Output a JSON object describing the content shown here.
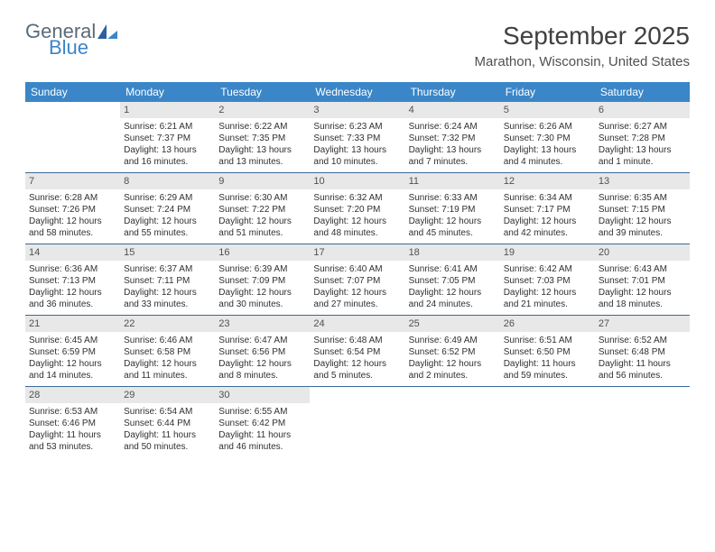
{
  "brand": {
    "part1": "General",
    "part2": "Blue"
  },
  "title": "September 2025",
  "location": "Marathon, Wisconsin, United States",
  "colors": {
    "header_bg": "#3a86c8",
    "header_text": "#ffffff",
    "daynum_bg": "#e8e8e8",
    "daynum_text": "#505050",
    "body_text": "#303030",
    "rule": "#3a6a9a",
    "page_bg": "#ffffff",
    "logo_gray": "#5a6b78",
    "logo_blue": "#3a86c8"
  },
  "typography": {
    "title_fontsize": 28,
    "location_fontsize": 15,
    "header_fontsize": 12,
    "daynum_fontsize": 11,
    "cell_fontsize": 10
  },
  "day_labels": [
    "Sunday",
    "Monday",
    "Tuesday",
    "Wednesday",
    "Thursday",
    "Friday",
    "Saturday"
  ],
  "weeks": [
    [
      null,
      {
        "n": "1",
        "sr": "Sunrise: 6:21 AM",
        "ss": "Sunset: 7:37 PM",
        "d1": "Daylight: 13 hours",
        "d2": "and 16 minutes."
      },
      {
        "n": "2",
        "sr": "Sunrise: 6:22 AM",
        "ss": "Sunset: 7:35 PM",
        "d1": "Daylight: 13 hours",
        "d2": "and 13 minutes."
      },
      {
        "n": "3",
        "sr": "Sunrise: 6:23 AM",
        "ss": "Sunset: 7:33 PM",
        "d1": "Daylight: 13 hours",
        "d2": "and 10 minutes."
      },
      {
        "n": "4",
        "sr": "Sunrise: 6:24 AM",
        "ss": "Sunset: 7:32 PM",
        "d1": "Daylight: 13 hours",
        "d2": "and 7 minutes."
      },
      {
        "n": "5",
        "sr": "Sunrise: 6:26 AM",
        "ss": "Sunset: 7:30 PM",
        "d1": "Daylight: 13 hours",
        "d2": "and 4 minutes."
      },
      {
        "n": "6",
        "sr": "Sunrise: 6:27 AM",
        "ss": "Sunset: 7:28 PM",
        "d1": "Daylight: 13 hours",
        "d2": "and 1 minute."
      }
    ],
    [
      {
        "n": "7",
        "sr": "Sunrise: 6:28 AM",
        "ss": "Sunset: 7:26 PM",
        "d1": "Daylight: 12 hours",
        "d2": "and 58 minutes."
      },
      {
        "n": "8",
        "sr": "Sunrise: 6:29 AM",
        "ss": "Sunset: 7:24 PM",
        "d1": "Daylight: 12 hours",
        "d2": "and 55 minutes."
      },
      {
        "n": "9",
        "sr": "Sunrise: 6:30 AM",
        "ss": "Sunset: 7:22 PM",
        "d1": "Daylight: 12 hours",
        "d2": "and 51 minutes."
      },
      {
        "n": "10",
        "sr": "Sunrise: 6:32 AM",
        "ss": "Sunset: 7:20 PM",
        "d1": "Daylight: 12 hours",
        "d2": "and 48 minutes."
      },
      {
        "n": "11",
        "sr": "Sunrise: 6:33 AM",
        "ss": "Sunset: 7:19 PM",
        "d1": "Daylight: 12 hours",
        "d2": "and 45 minutes."
      },
      {
        "n": "12",
        "sr": "Sunrise: 6:34 AM",
        "ss": "Sunset: 7:17 PM",
        "d1": "Daylight: 12 hours",
        "d2": "and 42 minutes."
      },
      {
        "n": "13",
        "sr": "Sunrise: 6:35 AM",
        "ss": "Sunset: 7:15 PM",
        "d1": "Daylight: 12 hours",
        "d2": "and 39 minutes."
      }
    ],
    [
      {
        "n": "14",
        "sr": "Sunrise: 6:36 AM",
        "ss": "Sunset: 7:13 PM",
        "d1": "Daylight: 12 hours",
        "d2": "and 36 minutes."
      },
      {
        "n": "15",
        "sr": "Sunrise: 6:37 AM",
        "ss": "Sunset: 7:11 PM",
        "d1": "Daylight: 12 hours",
        "d2": "and 33 minutes."
      },
      {
        "n": "16",
        "sr": "Sunrise: 6:39 AM",
        "ss": "Sunset: 7:09 PM",
        "d1": "Daylight: 12 hours",
        "d2": "and 30 minutes."
      },
      {
        "n": "17",
        "sr": "Sunrise: 6:40 AM",
        "ss": "Sunset: 7:07 PM",
        "d1": "Daylight: 12 hours",
        "d2": "and 27 minutes."
      },
      {
        "n": "18",
        "sr": "Sunrise: 6:41 AM",
        "ss": "Sunset: 7:05 PM",
        "d1": "Daylight: 12 hours",
        "d2": "and 24 minutes."
      },
      {
        "n": "19",
        "sr": "Sunrise: 6:42 AM",
        "ss": "Sunset: 7:03 PM",
        "d1": "Daylight: 12 hours",
        "d2": "and 21 minutes."
      },
      {
        "n": "20",
        "sr": "Sunrise: 6:43 AM",
        "ss": "Sunset: 7:01 PM",
        "d1": "Daylight: 12 hours",
        "d2": "and 18 minutes."
      }
    ],
    [
      {
        "n": "21",
        "sr": "Sunrise: 6:45 AM",
        "ss": "Sunset: 6:59 PM",
        "d1": "Daylight: 12 hours",
        "d2": "and 14 minutes."
      },
      {
        "n": "22",
        "sr": "Sunrise: 6:46 AM",
        "ss": "Sunset: 6:58 PM",
        "d1": "Daylight: 12 hours",
        "d2": "and 11 minutes."
      },
      {
        "n": "23",
        "sr": "Sunrise: 6:47 AM",
        "ss": "Sunset: 6:56 PM",
        "d1": "Daylight: 12 hours",
        "d2": "and 8 minutes."
      },
      {
        "n": "24",
        "sr": "Sunrise: 6:48 AM",
        "ss": "Sunset: 6:54 PM",
        "d1": "Daylight: 12 hours",
        "d2": "and 5 minutes."
      },
      {
        "n": "25",
        "sr": "Sunrise: 6:49 AM",
        "ss": "Sunset: 6:52 PM",
        "d1": "Daylight: 12 hours",
        "d2": "and 2 minutes."
      },
      {
        "n": "26",
        "sr": "Sunrise: 6:51 AM",
        "ss": "Sunset: 6:50 PM",
        "d1": "Daylight: 11 hours",
        "d2": "and 59 minutes."
      },
      {
        "n": "27",
        "sr": "Sunrise: 6:52 AM",
        "ss": "Sunset: 6:48 PM",
        "d1": "Daylight: 11 hours",
        "d2": "and 56 minutes."
      }
    ],
    [
      {
        "n": "28",
        "sr": "Sunrise: 6:53 AM",
        "ss": "Sunset: 6:46 PM",
        "d1": "Daylight: 11 hours",
        "d2": "and 53 minutes."
      },
      {
        "n": "29",
        "sr": "Sunrise: 6:54 AM",
        "ss": "Sunset: 6:44 PM",
        "d1": "Daylight: 11 hours",
        "d2": "and 50 minutes."
      },
      {
        "n": "30",
        "sr": "Sunrise: 6:55 AM",
        "ss": "Sunset: 6:42 PM",
        "d1": "Daylight: 11 hours",
        "d2": "and 46 minutes."
      },
      null,
      null,
      null,
      null
    ]
  ]
}
